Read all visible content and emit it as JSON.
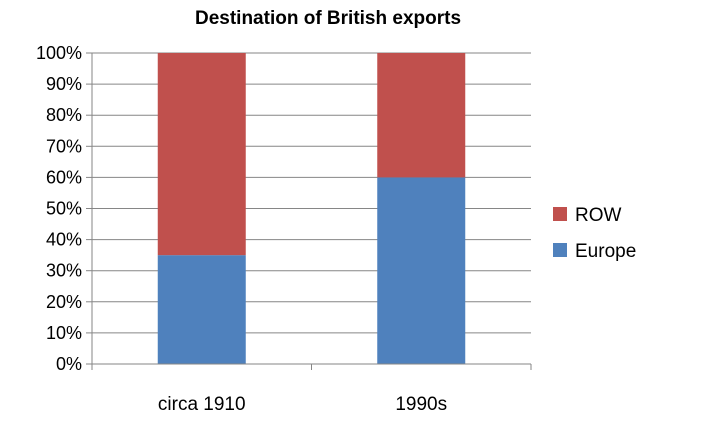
{
  "chart_data": {
    "type": "bar",
    "stacked": true,
    "title": "Destination of British exports",
    "xlabel": "",
    "ylabel": "",
    "categories": [
      "circa 1910",
      "1990s"
    ],
    "series": [
      {
        "name": "Europe",
        "values": [
          35,
          60
        ],
        "color": "#4f81bd"
      },
      {
        "name": "ROW",
        "values": [
          65,
          40
        ],
        "color": "#c0504d"
      }
    ],
    "ylim": [
      0,
      100
    ],
    "y_ticks": [
      "0%",
      "10%",
      "20%",
      "30%",
      "40%",
      "50%",
      "60%",
      "70%",
      "80%",
      "90%",
      "100%"
    ],
    "grid": true,
    "legend_position": "right",
    "legend_order": [
      "ROW",
      "Europe"
    ]
  }
}
